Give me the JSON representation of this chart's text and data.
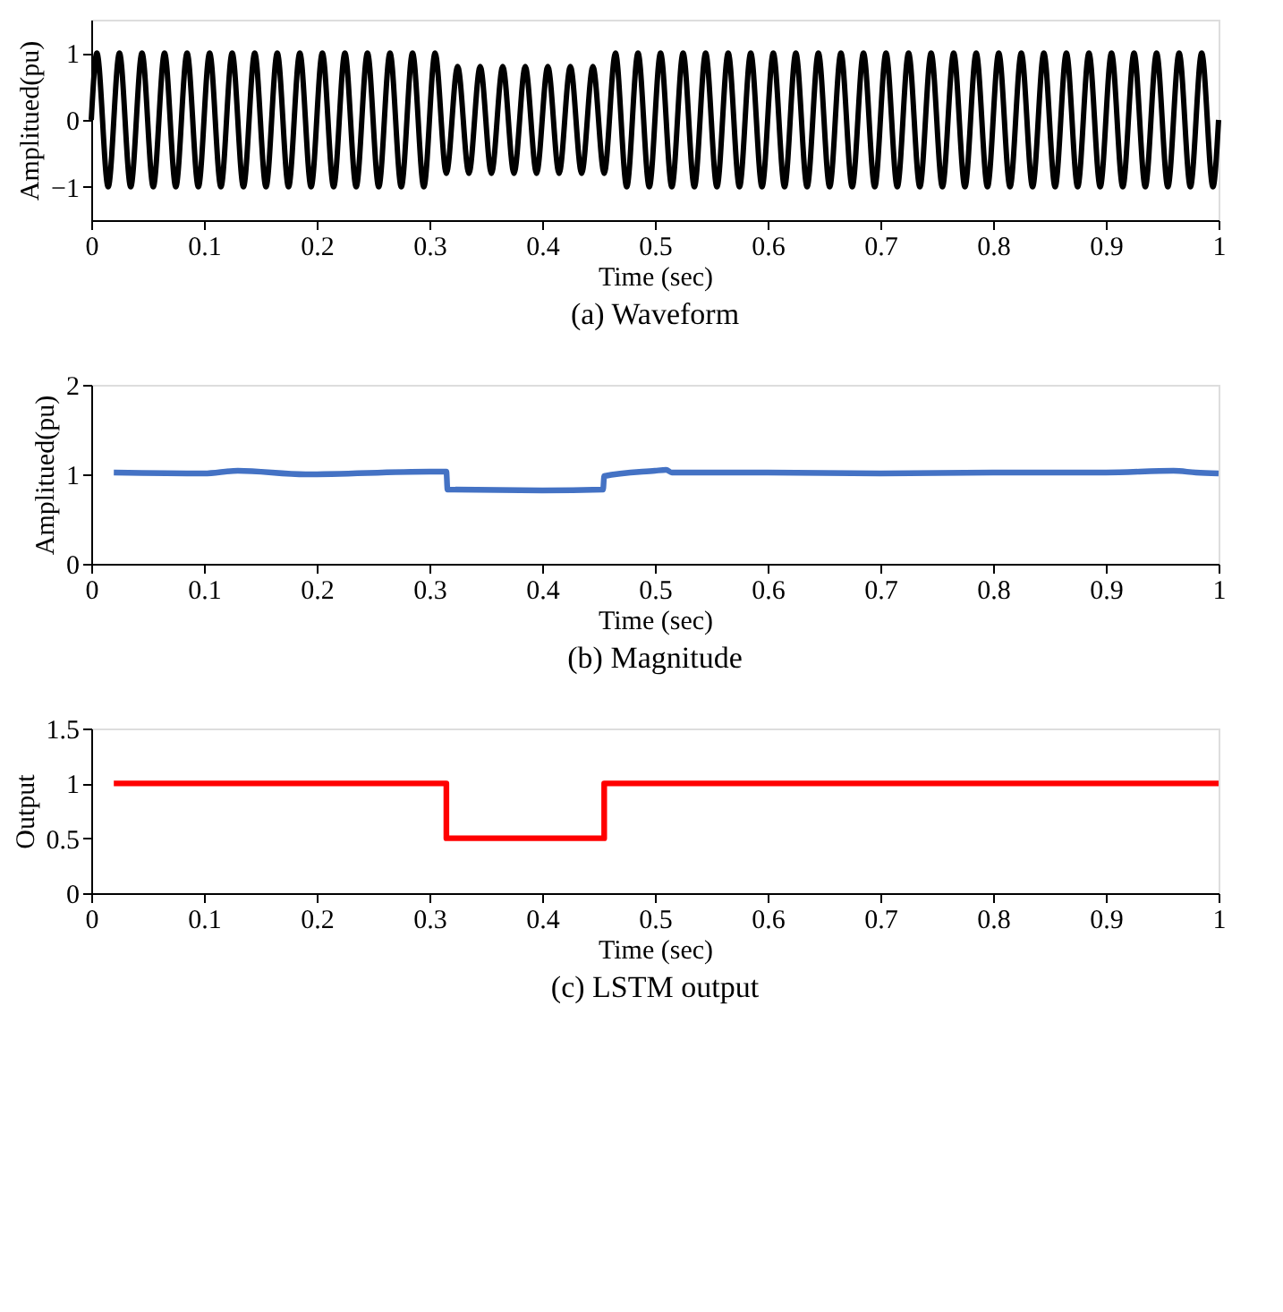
{
  "chart_data": [
    {
      "type": "line",
      "title": "(a) Waveform",
      "xlabel": "Time (sec)",
      "ylabel": "Amplitued(pu)",
      "xlim": [
        0,
        1
      ],
      "xticks": [
        0,
        0.1,
        0.2,
        0.3,
        0.4,
        0.5,
        0.6,
        0.7,
        0.8,
        0.9,
        1
      ],
      "ylim": [
        -1.5,
        1.5
      ],
      "yticks": [
        -1,
        0,
        1
      ],
      "grid": false,
      "series": [
        {
          "color": "#000000",
          "x": [
            0,
            0.005,
            0.015,
            0.025,
            0.035,
            0.045,
            0.055,
            0.065,
            0.075,
            0.085,
            0.095,
            0.105,
            0.115,
            0.125,
            0.135,
            0.145,
            0.155,
            0.165,
            0.175,
            0.185,
            0.195,
            0.205,
            0.215,
            0.225,
            0.235,
            0.245,
            0.255,
            0.265,
            0.275,
            0.285,
            0.295,
            0.305,
            0.315,
            0.325,
            0.335,
            0.345,
            0.355,
            0.365,
            0.375,
            0.385,
            0.395,
            0.405,
            0.415,
            0.425,
            0.435,
            0.445,
            0.455,
            0.465,
            0.475,
            0.485,
            0.495,
            0.505,
            0.515,
            0.525,
            0.535,
            0.545,
            0.555,
            0.565,
            0.575,
            0.585,
            0.595,
            0.605,
            0.615,
            0.625,
            0.635,
            0.645,
            0.655,
            0.665,
            0.675,
            0.685,
            0.695,
            0.705,
            0.715,
            0.725,
            0.735,
            0.745,
            0.755,
            0.765,
            0.775,
            0.785,
            0.795,
            0.805,
            0.815,
            0.825,
            0.835,
            0.845,
            0.855,
            0.865,
            0.875,
            0.885,
            0.895,
            0.905,
            0.915,
            0.925,
            0.935,
            0.945,
            0.955,
            0.965,
            0.975,
            0.985,
            0.995,
            1
          ],
          "values": [
            0,
            1,
            -1,
            1,
            -1,
            1,
            -1,
            1,
            -1,
            1,
            -1,
            1,
            -1,
            1,
            -1,
            1,
            -1,
            1,
            -1,
            1,
            -1,
            1,
            -1,
            1,
            -1,
            1,
            -1,
            1,
            -1,
            1,
            -1,
            1,
            -0.8,
            0.8,
            -0.8,
            0.8,
            -0.8,
            0.8,
            -0.8,
            0.8,
            -0.8,
            0.8,
            -0.8,
            0.8,
            -0.8,
            0.8,
            -0.8,
            1,
            -1,
            1,
            -1,
            1,
            -1,
            1,
            -1,
            1,
            -1,
            1,
            -1,
            1,
            -1,
            1,
            -1,
            1,
            -1,
            1,
            -1,
            1,
            -1,
            1,
            -1,
            1,
            -1,
            1,
            -1,
            1,
            -1,
            1,
            -1,
            1,
            -1,
            1,
            -1,
            1,
            -1,
            1,
            -1,
            1,
            -1,
            1,
            -1,
            1,
            -1,
            1,
            -1,
            1,
            -1,
            1,
            -1,
            1,
            -1,
            0
          ]
        }
      ]
    },
    {
      "type": "line",
      "title": "(b) Magnitude",
      "xlabel": "Time (sec)",
      "ylabel": "Amplitued(pu)",
      "xlim": [
        0,
        1
      ],
      "xticks": [
        0,
        0.1,
        0.2,
        0.3,
        0.4,
        0.5,
        0.6,
        0.7,
        0.8,
        0.9,
        1
      ],
      "ylim": [
        0,
        2
      ],
      "yticks": [
        0,
        1,
        2
      ],
      "grid": false,
      "series": [
        {
          "color": "#4472c4",
          "x": [
            0.02,
            0.1,
            0.13,
            0.19,
            0.3,
            0.315,
            0.316,
            0.4,
            0.454,
            0.455,
            0.5,
            0.51,
            0.515,
            0.6,
            0.7,
            0.8,
            0.9,
            0.96,
            0.98,
            1
          ],
          "values": [
            1.02,
            1.01,
            1.04,
            1.0,
            1.03,
            1.03,
            0.83,
            0.82,
            0.83,
            0.98,
            1.04,
            1.05,
            1.02,
            1.02,
            1.01,
            1.02,
            1.02,
            1.04,
            1.02,
            1.01
          ]
        }
      ]
    },
    {
      "type": "line",
      "title": "(c) LSTM output",
      "xlabel": "Time (sec)",
      "ylabel": "Output",
      "xlim": [
        0,
        1
      ],
      "xticks": [
        0,
        0.1,
        0.2,
        0.3,
        0.4,
        0.5,
        0.6,
        0.7,
        0.8,
        0.9,
        1
      ],
      "ylim": [
        0,
        1.5
      ],
      "yticks": [
        0,
        0.5,
        1,
        1.5
      ],
      "grid": false,
      "series": [
        {
          "color": "#ff0000",
          "x": [
            0.02,
            0.315,
            0.315,
            0.455,
            0.455,
            1
          ],
          "values": [
            1,
            1,
            0.5,
            0.5,
            1,
            1
          ]
        }
      ]
    }
  ]
}
